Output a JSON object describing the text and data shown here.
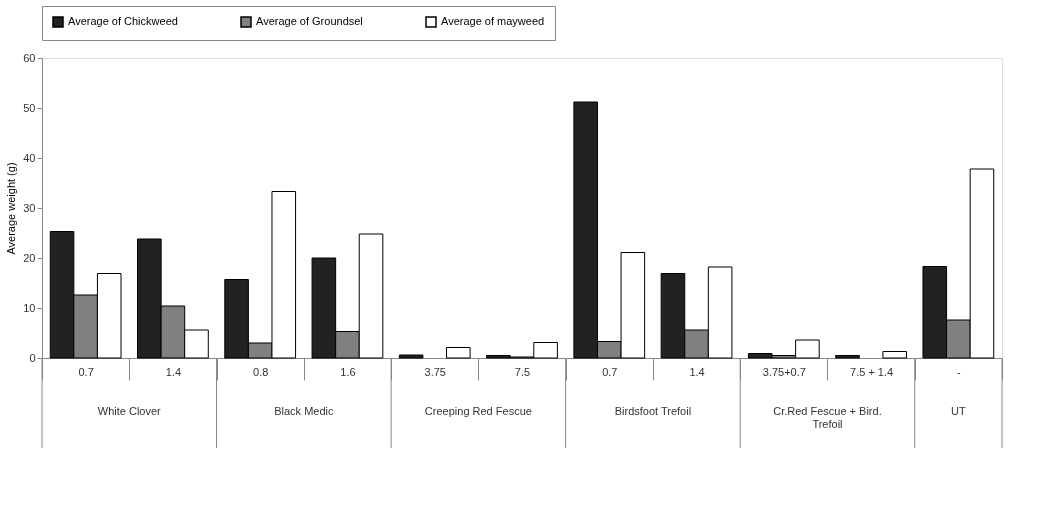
{
  "chart_data": {
    "type": "bar",
    "ylabel": "Average weight (g)",
    "categories": [
      "0.7",
      "1.4",
      "0.8",
      "1.6",
      "3.75",
      "7.5",
      "0.7",
      "1.4",
      "3.75+0.7",
      "7.5 + 1.4",
      "-"
    ],
    "series": [
      {
        "name": "Average of Chickweed",
        "color": "#222222",
        "values": [
          25.3,
          23.8,
          15.7,
          20.0,
          0.6,
          0.5,
          51.2,
          16.9,
          0.9,
          0.5,
          18.3
        ]
      },
      {
        "name": "Average of Groundsel",
        "color": "#808080",
        "values": [
          12.6,
          10.4,
          3.0,
          5.3,
          0.0,
          0.2,
          3.3,
          5.6,
          0.5,
          0.0,
          7.6
        ]
      },
      {
        "name": "Average of mayweed",
        "color": "#ffffff",
        "values": [
          16.9,
          5.6,
          33.3,
          24.8,
          2.1,
          3.1,
          21.1,
          18.2,
          3.6,
          1.3,
          37.8
        ]
      }
    ],
    "ylim": [
      0,
      60
    ],
    "yticks": [
      0,
      10,
      20,
      30,
      40,
      50,
      60
    ],
    "grid": false,
    "legend": "top",
    "annotations": [
      "White Clover",
      "Black Medic",
      "Creeping Red Fescue",
      "Birdsfoot Trefoil",
      "Cr.Red Fescue + Bird. Trefoil",
      "UT"
    ]
  }
}
